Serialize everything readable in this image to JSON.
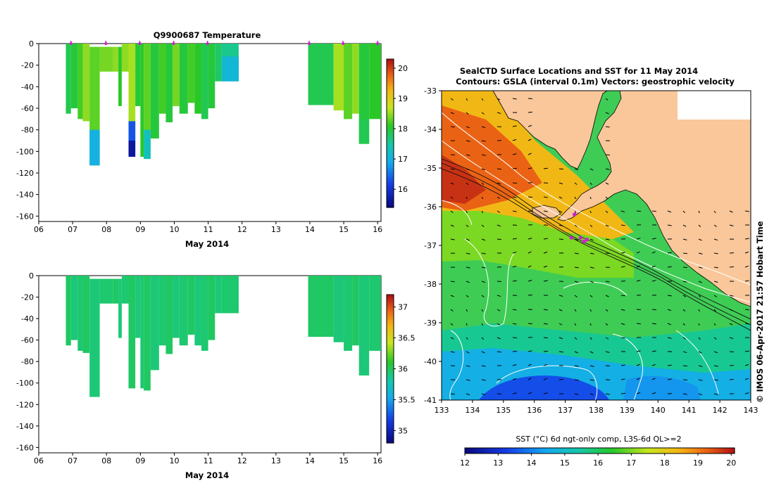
{
  "chart_data": [
    {
      "id": "temp-section",
      "type": "heatmap",
      "title": "Q9900687  Temperature",
      "xlabel": "May 2014",
      "ylabel": "",
      "xlim": [
        6,
        16.1
      ],
      "ylim": [
        -165,
        0
      ],
      "x_ticks": [
        "06",
        "07",
        "08",
        "09",
        "10",
        "11",
        "12",
        "13",
        "14",
        "15",
        "16"
      ],
      "y_ticks": [
        "0",
        "-20",
        "-40",
        "-60",
        "-80",
        "-100",
        "-120",
        "-140",
        "-160"
      ],
      "colorbar": {
        "min": 15.4,
        "max": 20.3,
        "ticks": [
          "16",
          "17",
          "18",
          "19",
          "20"
        ]
      },
      "surface_markers": [
        6.95,
        7.98,
        8.98,
        9.98,
        10.98,
        13.98,
        14.98,
        16.0
      ],
      "casts": [
        {
          "x0": 6.8,
          "x1": 6.95,
          "bottom": -65,
          "temp": 17.9
        },
        {
          "x0": 6.95,
          "x1": 7.15,
          "bottom": -60,
          "temp": 18.0
        },
        {
          "x0": 7.15,
          "x1": 7.3,
          "bottom": -70,
          "temp": 18.2
        },
        {
          "x0": 7.3,
          "x1": 7.5,
          "bottom": -72,
          "temp": 18.5
        },
        {
          "x0": 7.5,
          "x1": 7.8,
          "bottom": -113,
          "temp": 18.3
        },
        {
          "x0": 7.8,
          "x1": 8.2,
          "bottom": -26,
          "temp": 18.4
        },
        {
          "x0": 8.2,
          "x1": 8.35,
          "bottom": -26,
          "temp": 18.5
        },
        {
          "x0": 8.35,
          "x1": 8.45,
          "bottom": -58,
          "temp": 18.1
        },
        {
          "x0": 8.45,
          "x1": 8.65,
          "bottom": -26,
          "temp": 18.5
        },
        {
          "x0": 8.65,
          "x1": 8.85,
          "bottom": -105,
          "temp": 18.6
        },
        {
          "x0": 8.85,
          "x1": 9.0,
          "bottom": -58,
          "temp": 18.0
        },
        {
          "x0": 9.0,
          "x1": 9.1,
          "bottom": -105,
          "temp": 18.1
        },
        {
          "x0": 9.1,
          "x1": 9.3,
          "bottom": -107,
          "temp": 18.3
        },
        {
          "x0": 9.3,
          "x1": 9.55,
          "bottom": -88,
          "temp": 18.0
        },
        {
          "x0": 9.55,
          "x1": 9.75,
          "bottom": -65,
          "temp": 18.2
        },
        {
          "x0": 9.75,
          "x1": 9.95,
          "bottom": -73,
          "temp": 18.0
        },
        {
          "x0": 9.95,
          "x1": 10.15,
          "bottom": -58,
          "temp": 18.4
        },
        {
          "x0": 10.15,
          "x1": 10.4,
          "bottom": -65,
          "temp": 18.0
        },
        {
          "x0": 10.4,
          "x1": 10.6,
          "bottom": -55,
          "temp": 18.2
        },
        {
          "x0": 10.6,
          "x1": 10.8,
          "bottom": -65,
          "temp": 18.1
        },
        {
          "x0": 10.8,
          "x1": 11.0,
          "bottom": -70,
          "temp": 17.9
        },
        {
          "x0": 11.0,
          "x1": 11.2,
          "bottom": -60,
          "temp": 18.0
        },
        {
          "x0": 11.2,
          "x1": 11.4,
          "bottom": -35,
          "temp": 17.8
        },
        {
          "x0": 11.4,
          "x1": 11.9,
          "bottom": -35,
          "temp": 17.6
        },
        {
          "x0": 13.95,
          "x1": 14.7,
          "bottom": -57,
          "temp": 17.9
        },
        {
          "x0": 14.7,
          "x1": 15.0,
          "bottom": -62,
          "temp": 18.6
        },
        {
          "x0": 15.0,
          "x1": 15.25,
          "bottom": -70,
          "temp": 18.3
        },
        {
          "x0": 15.25,
          "x1": 15.45,
          "bottom": -65,
          "temp": 18.5
        },
        {
          "x0": 15.45,
          "x1": 15.75,
          "bottom": -93,
          "temp": 18.0
        },
        {
          "x0": 15.75,
          "x1": 16.1,
          "bottom": -70,
          "temp": 18.1
        }
      ]
    },
    {
      "id": "salinity-section",
      "type": "heatmap",
      "title": "",
      "xlabel": "May 2014",
      "ylabel": "",
      "xlim": [
        6,
        16.1
      ],
      "ylim": [
        -165,
        0
      ],
      "x_ticks": [
        "06",
        "07",
        "08",
        "09",
        "10",
        "11",
        "12",
        "13",
        "14",
        "15",
        "16"
      ],
      "y_ticks": [
        "0",
        "-20",
        "-40",
        "-60",
        "-80",
        "-100",
        "-120",
        "-140",
        "-160"
      ],
      "colorbar": {
        "min": 34.8,
        "max": 37.2,
        "ticks": [
          "35",
          "35.5",
          "36",
          "36.5",
          "37"
        ]
      },
      "casts_value": 35.95
    },
    {
      "id": "sst-map",
      "type": "heatmap",
      "title": "SealCTD Surface Locations and SST for 11 May 2014",
      "subtitle": "Contours: GSLA (interval 0.1m) Vectors: geostrophic velocity",
      "xlabel": "",
      "ylabel": "",
      "xlim": [
        133,
        143
      ],
      "ylim": [
        -41,
        -33
      ],
      "x_ticks": [
        "133",
        "134",
        "135",
        "136",
        "137",
        "138",
        "139",
        "140",
        "141",
        "142",
        "143"
      ],
      "y_ticks": [
        "-33",
        "-34",
        "-35",
        "-36",
        "-37",
        "-38",
        "-39",
        "-40",
        "-41"
      ],
      "colorbar_label": "SST (°C) 6d ngt-only comp, L3S-6d QL>=2",
      "colorbar": {
        "min": 12,
        "max": 20.1,
        "ticks": [
          "12",
          "13",
          "14",
          "15",
          "16",
          "17",
          "18",
          "19",
          "20"
        ]
      },
      "seal_locations": [
        [
          137.3,
          -36.2
        ],
        [
          137.5,
          -36.8
        ],
        [
          137.7,
          -36.85
        ],
        [
          137.6,
          -36.9
        ],
        [
          137.2,
          -36.8
        ]
      ]
    }
  ],
  "watermark": "© IMOS 06-Apr-2017 21:57 Hobart Time",
  "colors": {
    "land": "#f9c79a",
    "axis": "#000000",
    "marker": "#cc22cc"
  }
}
